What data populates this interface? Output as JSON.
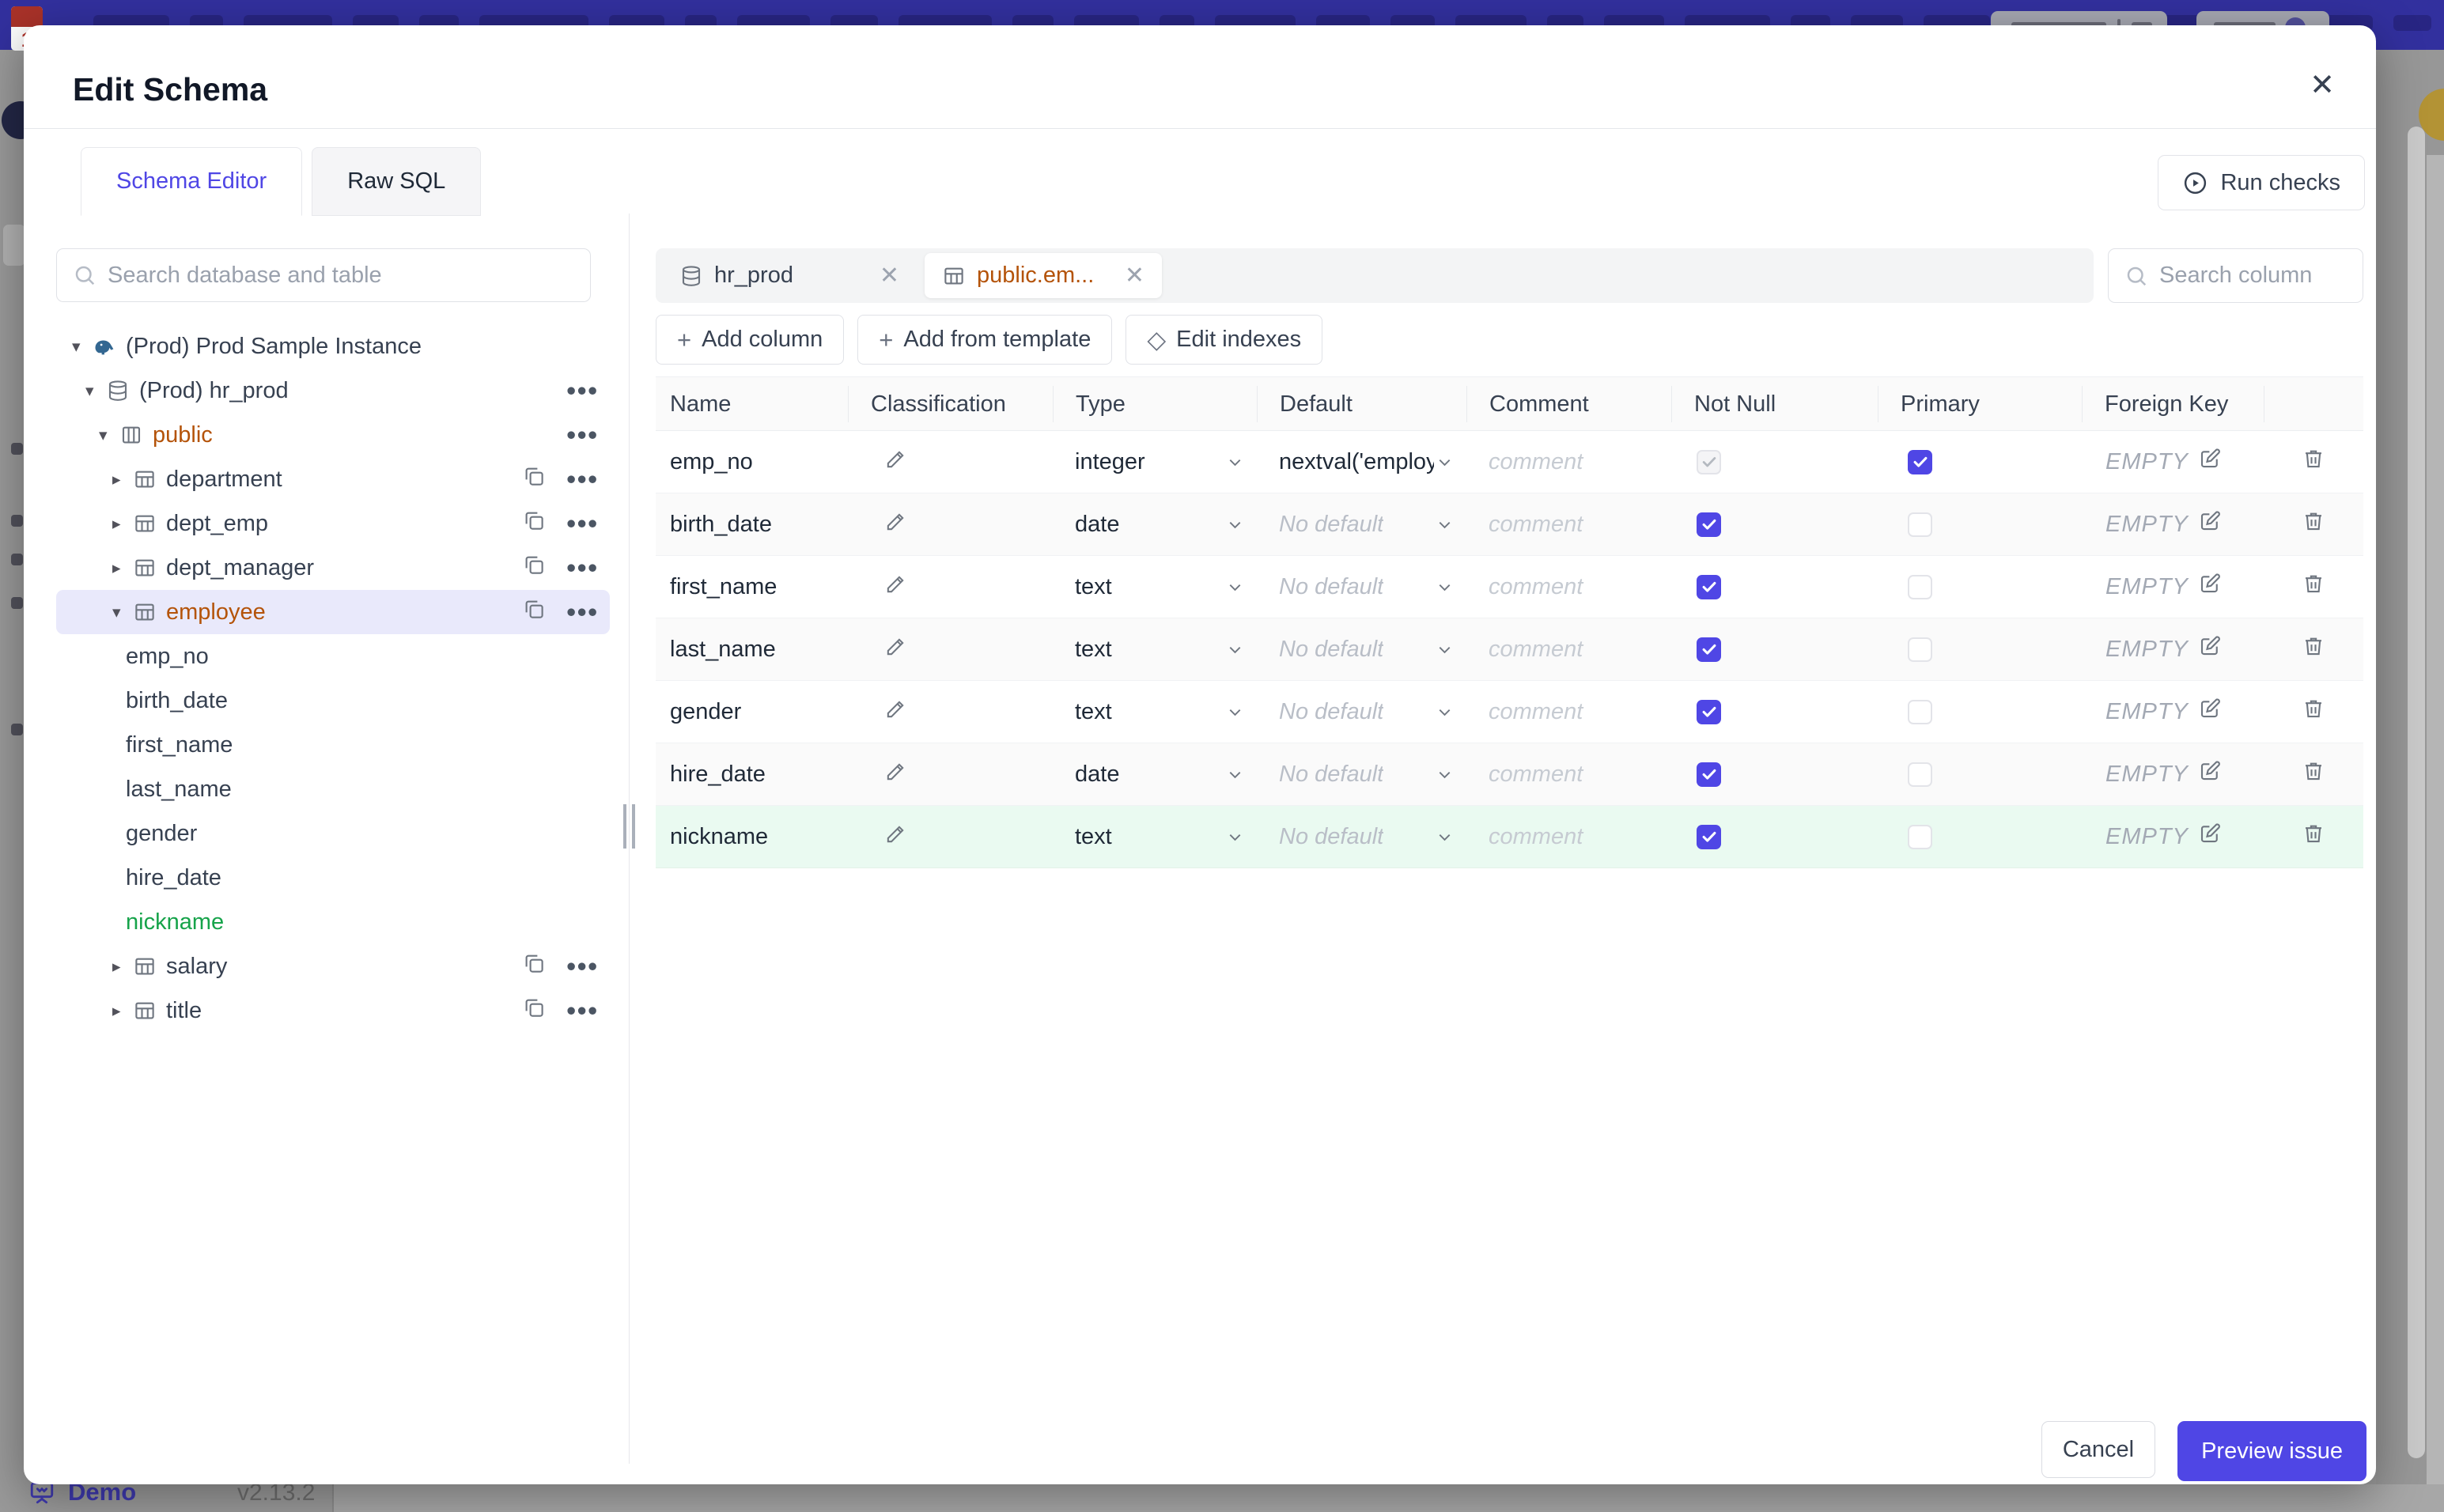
{
  "modal": {
    "title": "Edit Schema",
    "tabs": [
      {
        "label": "Schema Editor",
        "active": true
      },
      {
        "label": "Raw SQL",
        "active": false
      }
    ],
    "run_checks_label": "Run checks",
    "close_glyph": "✕"
  },
  "sidebar": {
    "search_placeholder": "Search database and table",
    "tree": [
      {
        "label": "(Prod) Prod Sample Instance",
        "kind": "instance",
        "level": 0,
        "caret": "down"
      },
      {
        "label": "(Prod) hr_prod",
        "kind": "database",
        "level": 1,
        "caret": "down",
        "more": true
      },
      {
        "label": "public",
        "kind": "schema",
        "level": 2,
        "caret": "down",
        "more": true,
        "accent": "amber"
      },
      {
        "label": "department",
        "kind": "table",
        "level": 3,
        "caret": "right",
        "copy": true,
        "more": true
      },
      {
        "label": "dept_emp",
        "kind": "table",
        "level": 3,
        "caret": "right",
        "copy": true,
        "more": true
      },
      {
        "label": "dept_manager",
        "kind": "table",
        "level": 3,
        "caret": "right",
        "copy": true,
        "more": true
      },
      {
        "label": "employee",
        "kind": "table",
        "level": 3,
        "caret": "down",
        "copy": true,
        "more": true,
        "accent": "amber",
        "selected": true
      },
      {
        "label": "emp_no",
        "kind": "column",
        "level": 4
      },
      {
        "label": "birth_date",
        "kind": "column",
        "level": 4
      },
      {
        "label": "first_name",
        "kind": "column",
        "level": 4
      },
      {
        "label": "last_name",
        "kind": "column",
        "level": 4
      },
      {
        "label": "gender",
        "kind": "column",
        "level": 4
      },
      {
        "label": "hire_date",
        "kind": "column",
        "level": 4
      },
      {
        "label": "nickname",
        "kind": "column",
        "level": 4,
        "accent": "green"
      },
      {
        "label": "salary",
        "kind": "table",
        "level": 3,
        "caret": "right",
        "copy": true,
        "more": true
      },
      {
        "label": "title",
        "kind": "table",
        "level": 3,
        "caret": "right",
        "copy": true,
        "more": true
      }
    ]
  },
  "editor": {
    "chips": [
      {
        "label": "hr_prod",
        "icon": "database",
        "active": false
      },
      {
        "label": "public.em...",
        "icon": "table",
        "active": true
      }
    ],
    "column_search_placeholder": "Search column",
    "actions": [
      {
        "icon": "plus",
        "label": "Add column"
      },
      {
        "icon": "plus",
        "label": "Add from template"
      },
      {
        "icon": "diamond",
        "label": "Edit indexes"
      }
    ],
    "table": {
      "headers": [
        "Name",
        "Classification",
        "Type",
        "Default",
        "Comment",
        "Not Null",
        "Primary",
        "Foreign Key"
      ],
      "comment_placeholder": "comment",
      "foreign_key_label": "EMPTY",
      "rows": [
        {
          "name": "emp_no",
          "type": "integer",
          "default": "nextval('employ",
          "default_is_placeholder": false,
          "not_null": "checked-disabled",
          "primary": "checked",
          "new": false
        },
        {
          "name": "birth_date",
          "type": "date",
          "default": "No default",
          "default_is_placeholder": true,
          "not_null": "checked",
          "primary": "unchecked",
          "new": false
        },
        {
          "name": "first_name",
          "type": "text",
          "default": "No default",
          "default_is_placeholder": true,
          "not_null": "checked",
          "primary": "unchecked",
          "new": false
        },
        {
          "name": "last_name",
          "type": "text",
          "default": "No default",
          "default_is_placeholder": true,
          "not_null": "checked",
          "primary": "unchecked",
          "new": false
        },
        {
          "name": "gender",
          "type": "text",
          "default": "No default",
          "default_is_placeholder": true,
          "not_null": "checked",
          "primary": "unchecked",
          "new": false
        },
        {
          "name": "hire_date",
          "type": "date",
          "default": "No default",
          "default_is_placeholder": true,
          "not_null": "checked",
          "primary": "unchecked",
          "new": false
        },
        {
          "name": "nickname",
          "type": "text",
          "default": "No default",
          "default_is_placeholder": true,
          "not_null": "checked",
          "primary": "unchecked",
          "new": true
        }
      ]
    },
    "footer": {
      "cancel_label": "Cancel",
      "submit_label": "Preview issue"
    }
  },
  "background": {
    "demo_label": "Demo",
    "version": "v2.13.2"
  },
  "colors": {
    "accent": "#4f46e5",
    "topbar": "#32309e",
    "amber_item": "#b45309",
    "new_item_green": "#16a34a",
    "new_row_bg": "#eafaf1",
    "selected_tree_bg": "#e9e9fb"
  }
}
